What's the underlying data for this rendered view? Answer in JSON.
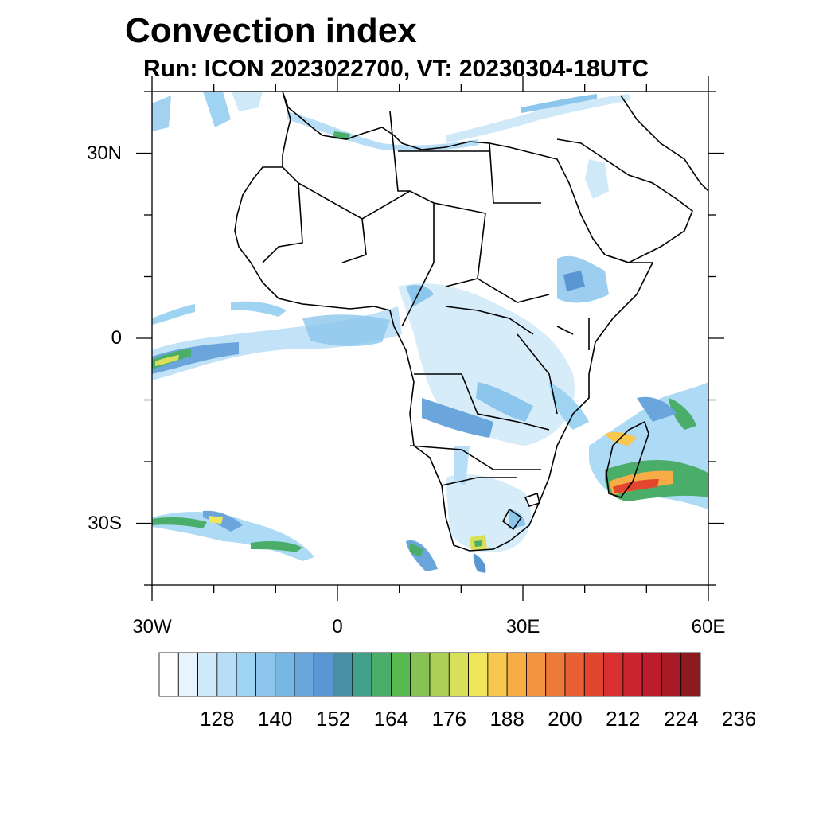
{
  "header": {
    "title": "Convection index",
    "subtitle": "Run: ICON 2023022700,  VT: 20230304-18UTC"
  },
  "map": {
    "lon_range": [
      -30,
      60
    ],
    "lat_range": [
      -40,
      40
    ],
    "lat_ticks": [
      {
        "value": 30,
        "label": "30N"
      },
      {
        "value": 0,
        "label": "0"
      },
      {
        "value": -30,
        "label": "30S"
      }
    ],
    "lon_ticks": [
      {
        "value": -30,
        "label": "30W"
      },
      {
        "value": 0,
        "label": "0"
      },
      {
        "value": 30,
        "label": "30E"
      },
      {
        "value": 60,
        "label": "60E"
      }
    ]
  },
  "colorbar": {
    "colors": [
      "#ffffff",
      "#e8f4fc",
      "#cfe9f8",
      "#b7def6",
      "#9fd3f2",
      "#8cc6ec",
      "#78b6e4",
      "#6aa6dc",
      "#5a96d2",
      "#4a8ea6",
      "#42a08a",
      "#4aae6a",
      "#56ba50",
      "#86c254",
      "#aed056",
      "#d8e05a",
      "#f0e65a",
      "#f8c84e",
      "#f8ac46",
      "#f49440",
      "#ee7a3a",
      "#e86034",
      "#e2462e",
      "#d83030",
      "#cc2430",
      "#bc1c2c",
      "#a81a26",
      "#8c1a1e"
    ],
    "labels": [
      "128",
      "140",
      "152",
      "164",
      "176",
      "188",
      "200",
      "212",
      "224",
      "236"
    ]
  }
}
